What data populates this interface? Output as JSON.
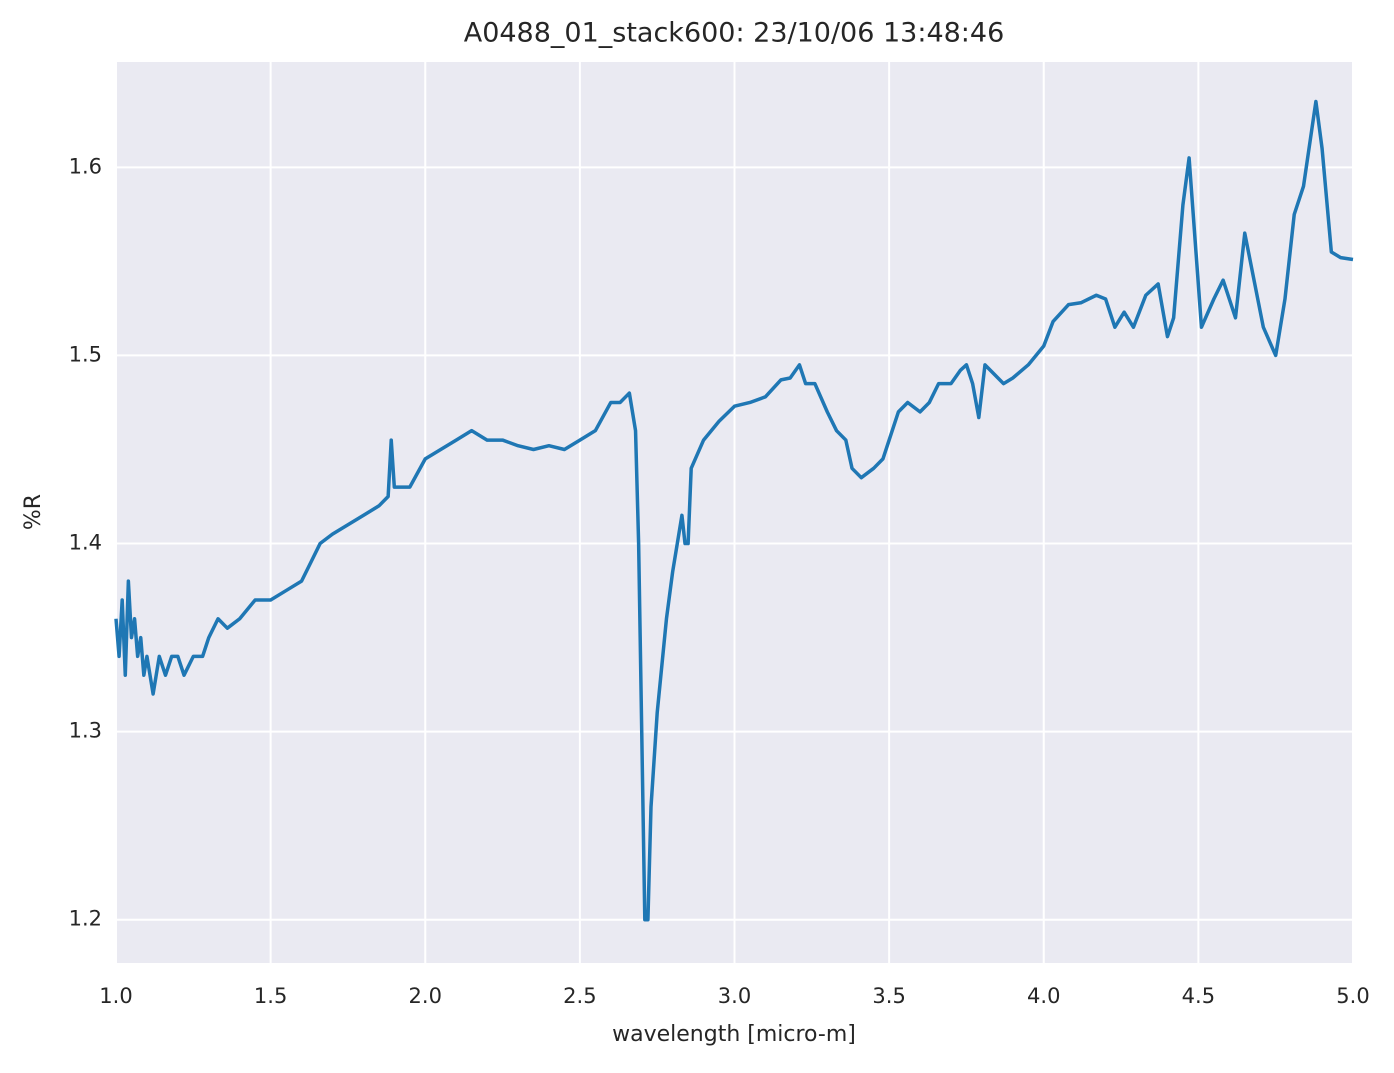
{
  "chart_data": {
    "type": "line",
    "title": "A0488_01_stack600:  23/10/06 13:48:46",
    "x_label": "wavelength [micro-m]",
    "y_label": "%R",
    "xlim": [
      1.0,
      5.0
    ],
    "ylim": [
      1.177,
      1.656
    ],
    "xticks": [
      {
        "value": 1.0,
        "label": "1.0"
      },
      1.5,
      {
        "value": 2.0,
        "label": "2.0"
      },
      2.5,
      {
        "value": 3.0,
        "label": "3.0"
      },
      3.5,
      {
        "value": 4.0,
        "label": "4.0"
      },
      4.5,
      {
        "value": 5.0,
        "label": "5.0"
      }
    ],
    "yticks": [
      1.2,
      1.3,
      1.4,
      1.5,
      1.6
    ],
    "grid": true,
    "series": [
      {
        "color": "#1f77b4",
        "x": [
          1.0,
          1.01,
          1.02,
          1.03,
          1.04,
          1.05,
          1.06,
          1.07,
          1.08,
          1.09,
          1.1,
          1.12,
          1.14,
          1.16,
          1.18,
          1.2,
          1.22,
          1.25,
          1.28,
          1.3,
          1.33,
          1.36,
          1.4,
          1.45,
          1.5,
          1.55,
          1.6,
          1.63,
          1.66,
          1.7,
          1.75,
          1.8,
          1.85,
          1.88,
          1.89,
          1.9,
          1.95,
          2.0,
          2.05,
          2.1,
          2.15,
          2.2,
          2.25,
          2.3,
          2.35,
          2.4,
          2.45,
          2.5,
          2.55,
          2.6,
          2.63,
          2.66,
          2.68,
          2.69,
          2.7,
          2.71,
          2.72,
          2.73,
          2.75,
          2.78,
          2.8,
          2.83,
          2.84,
          2.85,
          2.86,
          2.9,
          2.95,
          3.0,
          3.05,
          3.1,
          3.15,
          3.18,
          3.21,
          3.23,
          3.26,
          3.3,
          3.33,
          3.36,
          3.38,
          3.41,
          3.45,
          3.48,
          3.5,
          3.53,
          3.56,
          3.6,
          3.63,
          3.66,
          3.7,
          3.73,
          3.75,
          3.77,
          3.79,
          3.81,
          3.84,
          3.87,
          3.9,
          3.95,
          4.0,
          4.03,
          4.08,
          4.12,
          4.17,
          4.2,
          4.23,
          4.26,
          4.29,
          4.33,
          4.37,
          4.4,
          4.42,
          4.45,
          4.47,
          4.49,
          4.51,
          4.55,
          4.58,
          4.62,
          4.65,
          4.68,
          4.71,
          4.75,
          4.78,
          4.81,
          4.84,
          4.88,
          4.9,
          4.93,
          4.96,
          5.0
        ],
        "values": [
          1.36,
          1.34,
          1.37,
          1.33,
          1.38,
          1.35,
          1.36,
          1.34,
          1.35,
          1.33,
          1.34,
          1.32,
          1.34,
          1.33,
          1.34,
          1.34,
          1.33,
          1.34,
          1.34,
          1.35,
          1.36,
          1.355,
          1.36,
          1.37,
          1.37,
          1.375,
          1.38,
          1.39,
          1.4,
          1.405,
          1.41,
          1.415,
          1.42,
          1.425,
          1.455,
          1.43,
          1.43,
          1.445,
          1.45,
          1.455,
          1.46,
          1.455,
          1.455,
          1.452,
          1.45,
          1.452,
          1.45,
          1.455,
          1.46,
          1.475,
          1.475,
          1.48,
          1.46,
          1.4,
          1.3,
          1.2,
          1.2,
          1.26,
          1.31,
          1.36,
          1.385,
          1.415,
          1.4,
          1.4,
          1.44,
          1.455,
          1.465,
          1.473,
          1.475,
          1.478,
          1.487,
          1.488,
          1.495,
          1.485,
          1.485,
          1.47,
          1.46,
          1.455,
          1.44,
          1.435,
          1.44,
          1.445,
          1.455,
          1.47,
          1.475,
          1.47,
          1.475,
          1.485,
          1.485,
          1.492,
          1.495,
          1.485,
          1.467,
          1.495,
          1.49,
          1.485,
          1.488,
          1.495,
          1.505,
          1.518,
          1.527,
          1.528,
          1.532,
          1.53,
          1.515,
          1.523,
          1.515,
          1.532,
          1.538,
          1.51,
          1.52,
          1.58,
          1.605,
          1.56,
          1.515,
          1.53,
          1.54,
          1.52,
          1.565,
          1.54,
          1.515,
          1.5,
          1.53,
          1.575,
          1.59,
          1.635,
          1.61,
          1.555,
          1.552,
          1.551
        ]
      }
    ]
  }
}
